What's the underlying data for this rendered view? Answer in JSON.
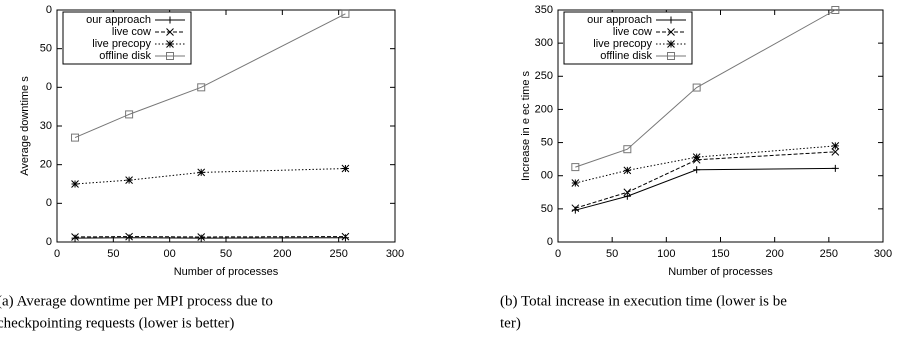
{
  "chart_data": [
    {
      "type": "line",
      "xlabel": "Number of processes",
      "ylabel": "Average downtime s",
      "x": [
        16,
        64,
        128,
        256
      ],
      "series": [
        {
          "name": "our approach",
          "color": "#000000",
          "marker": "+",
          "values": [
            1.0,
            1.1,
            1.0,
            1.1
          ]
        },
        {
          "name": "live cow",
          "color": "#000000",
          "marker": "x",
          "values": [
            1.3,
            1.4,
            1.3,
            1.4
          ]
        },
        {
          "name": "live precopy",
          "color": "#000000",
          "marker": "*",
          "values": [
            15,
            16,
            18,
            19
          ]
        },
        {
          "name": "offline disk",
          "color": "#777777",
          "marker": "square",
          "values": [
            27,
            33,
            40,
            59
          ]
        }
      ],
      "xlim": [
        0,
        300
      ],
      "xticks": [
        0,
        50,
        {
          "value": 100,
          "label": "00"
        },
        {
          "value": 150,
          "label": "50"
        },
        200,
        250,
        300
      ],
      "ylim": [
        0,
        60
      ],
      "yticks": [
        0,
        {
          "value": 10,
          "label": "0"
        },
        20,
        30,
        {
          "value": 40,
          "label": "0"
        },
        50,
        {
          "value": 60,
          "label": "0"
        }
      ],
      "legend": "upper left",
      "caption": [
        "(a) Average downtime per MPI process due to",
        "checkpointing requests (lower is better)"
      ]
    },
    {
      "type": "line",
      "xlabel": "Number of processes",
      "ylabel": "Increase in e ec time s",
      "x": [
        16,
        64,
        128,
        256
      ],
      "series": [
        {
          "name": "our approach",
          "color": "#000000",
          "marker": "+",
          "values": [
            48,
            69,
            109,
            111
          ]
        },
        {
          "name": "live cow",
          "color": "#000000",
          "marker": "x",
          "values": [
            51,
            75,
            124,
            136
          ]
        },
        {
          "name": "live precopy",
          "color": "#000000",
          "marker": "*",
          "values": [
            89,
            108,
            128,
            145
          ]
        },
        {
          "name": "offline disk",
          "color": "#777777",
          "marker": "square",
          "values": [
            113,
            140,
            233,
            350
          ]
        }
      ],
      "xlim": [
        0,
        300
      ],
      "xticks": [
        0,
        50,
        100,
        150,
        200,
        250,
        300
      ],
      "ylim": [
        0,
        350
      ],
      "yticks": [
        0,
        50,
        {
          "value": 100,
          "label": "00"
        },
        {
          "value": 150,
          "label": "50"
        },
        200,
        250,
        300,
        350
      ],
      "legend": "upper left",
      "caption": [
        "(b) Total increase in execution time (lower is be",
        "ter)"
      ]
    }
  ]
}
